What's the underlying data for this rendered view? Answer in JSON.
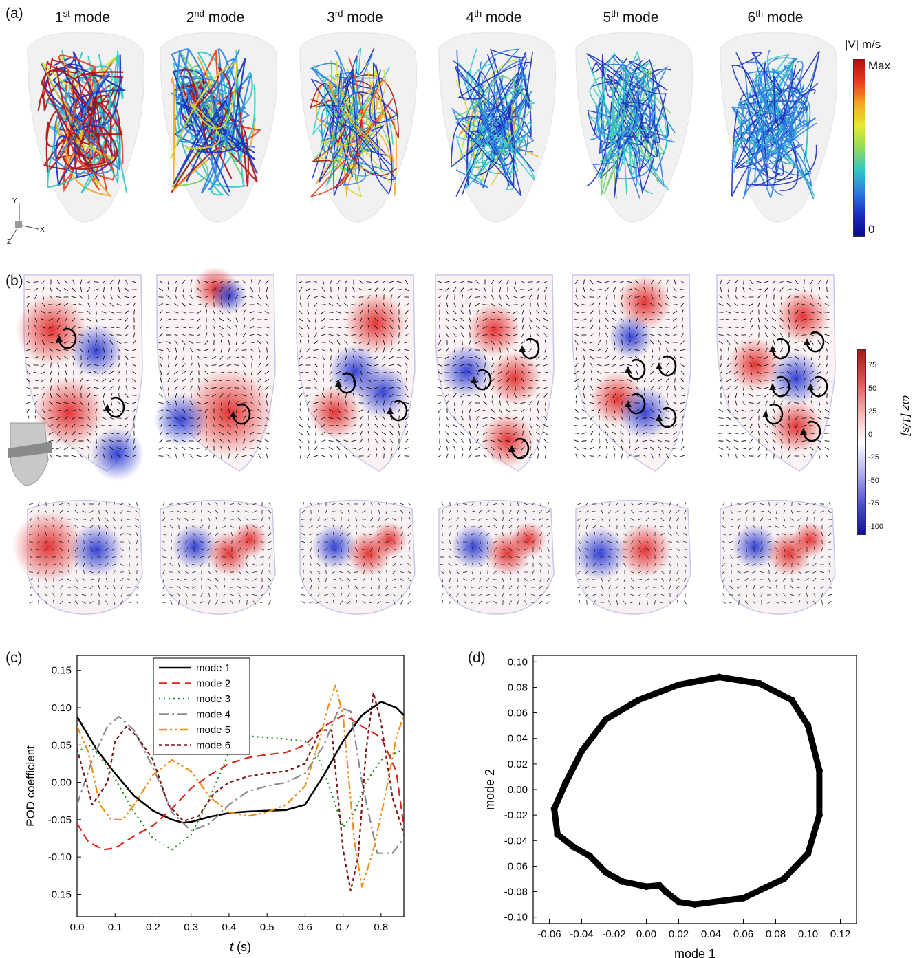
{
  "panel_labels": {
    "a": "(a)",
    "b": "(b)",
    "c": "(c)",
    "d": "(d)"
  },
  "mode_titles": [
    {
      "n": "1",
      "sup": "st",
      "rest": " mode"
    },
    {
      "n": "2",
      "sup": "nd",
      "rest": " mode"
    },
    {
      "n": "3",
      "sup": "rd",
      "rest": " mode"
    },
    {
      "n": "4",
      "sup": "th",
      "rest": " mode"
    },
    {
      "n": "5",
      "sup": "th",
      "rest": " mode"
    },
    {
      "n": "6",
      "sup": "th",
      "rest": " mode"
    }
  ],
  "velocity_colorbar": {
    "title": "|V| m/s",
    "max_label": "Max",
    "min_label": "0",
    "colors": [
      "#b01010",
      "#e83c1c",
      "#f5a623",
      "#e8e832",
      "#8fdc5a",
      "#31c7c7",
      "#2b7fe0",
      "#1a2fbf",
      "#0b0b8c"
    ]
  },
  "axes_triad": {
    "y": "Y",
    "x": "X",
    "z": "Z"
  },
  "vorticity_colorbar": {
    "title": "ωz [1/s]",
    "ticks": [
      "75",
      "50",
      "25",
      "0",
      "-25",
      "-50",
      "-75",
      "-100"
    ],
    "colors": [
      "#b01515",
      "#e05050",
      "#f5b0b0",
      "#ffffff",
      "#b0b0f0",
      "#5050d0",
      "#1010a0"
    ]
  },
  "chart_data": [
    {
      "type": "line",
      "xlabel": "t (s)",
      "ylabel": "POD coefficient",
      "xlim": [
        0.0,
        0.86
      ],
      "ylim": [
        -0.18,
        0.17
      ],
      "xticks": [
        "0.0",
        "0.1",
        "0.2",
        "0.3",
        "0.4",
        "0.5",
        "0.6",
        "0.7",
        "0.8"
      ],
      "yticks": [
        "-0.15",
        "-0.10",
        "-0.05",
        "0.00",
        "0.05",
        "0.10",
        "0.15"
      ],
      "legend_position": "top-center",
      "series": [
        {
          "name": "mode 1",
          "color": "#000000",
          "dash": "",
          "x": [
            0,
            0.05,
            0.1,
            0.15,
            0.2,
            0.25,
            0.28,
            0.3,
            0.35,
            0.4,
            0.45,
            0.5,
            0.55,
            0.6,
            0.65,
            0.7,
            0.75,
            0.8,
            0.84,
            0.86
          ],
          "y": [
            0.088,
            0.045,
            0.012,
            -0.018,
            -0.038,
            -0.05,
            -0.054,
            -0.053,
            -0.046,
            -0.041,
            -0.039,
            -0.038,
            -0.037,
            -0.03,
            0.01,
            0.055,
            0.09,
            0.108,
            0.1,
            0.09
          ]
        },
        {
          "name": "mode 2",
          "color": "#e0241c",
          "dash": "12,7",
          "x": [
            0,
            0.03,
            0.07,
            0.1,
            0.15,
            0.2,
            0.25,
            0.3,
            0.35,
            0.4,
            0.45,
            0.5,
            0.55,
            0.6,
            0.65,
            0.7,
            0.72,
            0.75,
            0.8,
            0.84,
            0.86
          ],
          "y": [
            -0.055,
            -0.08,
            -0.09,
            -0.088,
            -0.072,
            -0.058,
            -0.035,
            -0.008,
            0.01,
            0.025,
            0.033,
            0.037,
            0.04,
            0.05,
            0.075,
            0.09,
            0.085,
            0.075,
            0.06,
            0.015,
            -0.06
          ]
        },
        {
          "name": "mode 3",
          "color": "#1a8c1a",
          "dash": "2,5",
          "x": [
            0,
            0.03,
            0.06,
            0.1,
            0.15,
            0.2,
            0.25,
            0.3,
            0.35,
            0.4,
            0.45,
            0.5,
            0.55,
            0.6,
            0.63,
            0.66,
            0.7,
            0.73,
            0.76,
            0.8,
            0.84,
            0.86
          ],
          "y": [
            0.04,
            0.05,
            0.035,
            0.005,
            -0.04,
            -0.075,
            -0.09,
            -0.07,
            -0.02,
            0.04,
            0.062,
            0.06,
            0.058,
            0.055,
            0.04,
            0.0,
            -0.06,
            -0.04,
            0.0,
            0.03,
            0.04,
            0.043
          ]
        },
        {
          "name": "mode 4",
          "color": "#8a8a8a",
          "dash": "14,5,3,5",
          "x": [
            0,
            0.04,
            0.08,
            0.11,
            0.15,
            0.2,
            0.25,
            0.3,
            0.35,
            0.4,
            0.45,
            0.5,
            0.55,
            0.6,
            0.65,
            0.69,
            0.72,
            0.75,
            0.79,
            0.83,
            0.86
          ],
          "y": [
            -0.03,
            0.03,
            0.075,
            0.088,
            0.07,
            0.02,
            -0.04,
            -0.065,
            -0.055,
            -0.03,
            -0.012,
            -0.005,
            0.0,
            0.012,
            0.05,
            0.1,
            0.095,
            0.0,
            -0.095,
            -0.095,
            -0.075
          ]
        },
        {
          "name": "mode 5",
          "color": "#f08c10",
          "dash": "12,4,3,4,3,4",
          "x": [
            0,
            0.03,
            0.06,
            0.09,
            0.12,
            0.15,
            0.2,
            0.25,
            0.3,
            0.35,
            0.4,
            0.45,
            0.5,
            0.55,
            0.6,
            0.64,
            0.66,
            0.68,
            0.7,
            0.73,
            0.75,
            0.78,
            0.81,
            0.84,
            0.86
          ],
          "y": [
            0.075,
            0.04,
            -0.03,
            -0.05,
            -0.05,
            -0.03,
            0.01,
            0.03,
            0.015,
            -0.02,
            -0.04,
            -0.045,
            -0.04,
            -0.03,
            -0.005,
            0.06,
            0.1,
            0.13,
            0.09,
            -0.08,
            -0.14,
            -0.09,
            -0.02,
            0.06,
            0.09
          ]
        },
        {
          "name": "mode 6",
          "color": "#7a1515",
          "dash": "5,4",
          "x": [
            0,
            0.04,
            0.08,
            0.1,
            0.13,
            0.16,
            0.2,
            0.24,
            0.28,
            0.32,
            0.36,
            0.4,
            0.45,
            0.5,
            0.55,
            0.6,
            0.64,
            0.67,
            0.7,
            0.72,
            0.74,
            0.76,
            0.78,
            0.8,
            0.83,
            0.86
          ],
          "y": [
            0.045,
            -0.03,
            0.0,
            0.055,
            0.075,
            0.06,
            0.03,
            -0.03,
            -0.052,
            -0.045,
            -0.015,
            0.0,
            0.008,
            0.012,
            0.015,
            0.025,
            0.07,
            0.07,
            -0.09,
            -0.145,
            -0.1,
            0.04,
            0.12,
            0.08,
            -0.02,
            -0.07
          ]
        }
      ]
    },
    {
      "type": "scatter",
      "xlabel": "mode 1",
      "ylabel": "mode 2",
      "xlim": [
        -0.07,
        0.13
      ],
      "ylim": [
        -0.105,
        0.105
      ],
      "xticks": [
        "-0.06",
        "-0.04",
        "-0.02",
        "0.00",
        "0.02",
        "0.04",
        "0.06",
        "0.08",
        "0.10",
        "0.12"
      ],
      "yticks": [
        "-0.10",
        "-0.08",
        "-0.06",
        "-0.04",
        "-0.02",
        "0.00",
        "0.02",
        "0.04",
        "0.06",
        "0.08",
        "0.10"
      ],
      "series": [
        {
          "name": "",
          "color": "#000000",
          "x": [
            0.045,
            0.07,
            0.09,
            0.1,
            0.107,
            0.107,
            0.1,
            0.085,
            0.06,
            0.03,
            0.02,
            0.012,
            0.008,
            0.0,
            -0.015,
            -0.025,
            -0.035,
            -0.045,
            -0.055,
            -0.057,
            -0.05,
            -0.04,
            -0.025,
            -0.005,
            0.02,
            0.045
          ],
          "y": [
            0.088,
            0.083,
            0.07,
            0.05,
            0.015,
            -0.02,
            -0.05,
            -0.07,
            -0.085,
            -0.09,
            -0.088,
            -0.08,
            -0.075,
            -0.076,
            -0.072,
            -0.065,
            -0.052,
            -0.045,
            -0.035,
            -0.015,
            0.005,
            0.03,
            0.055,
            0.07,
            0.082,
            0.088
          ]
        }
      ]
    }
  ]
}
